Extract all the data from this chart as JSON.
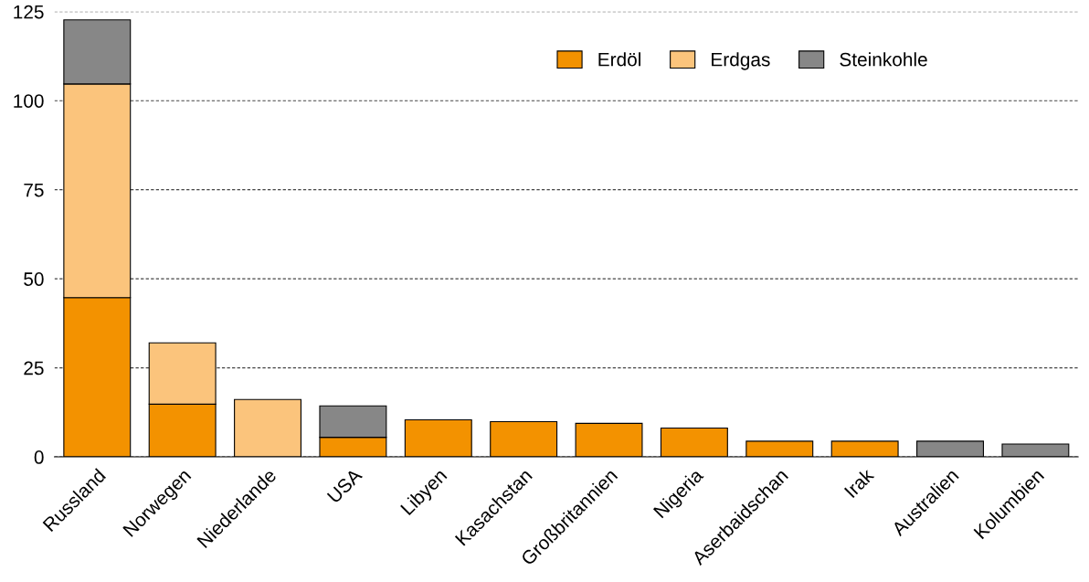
{
  "chart_data": {
    "type": "bar",
    "stacked": true,
    "categories": [
      "Russland",
      "Norwegen",
      "Niederlande",
      "USA",
      "Libyen",
      "Kasachstan",
      "Großbritannien",
      "Nigeria",
      "Aserbaidschan",
      "Irak",
      "Australien",
      "Kolumbien"
    ],
    "series": [
      {
        "name": "Erdöl",
        "color": "#f39200",
        "values": [
          44.7,
          14.8,
          0,
          5.5,
          10.4,
          9.9,
          9.4,
          8.1,
          4.4,
          4.4,
          0,
          0
        ]
      },
      {
        "name": "Erdgas",
        "color": "#fbc47c",
        "values": [
          60,
          17.2,
          16.1,
          0,
          0,
          0,
          0,
          0,
          0,
          0,
          0,
          0
        ]
      },
      {
        "name": "Steinkohle",
        "color": "#878787",
        "values": [
          18,
          0,
          0,
          8.8,
          0,
          0,
          0,
          0,
          0,
          0,
          4.4,
          3.6
        ]
      }
    ],
    "ylim": [
      0,
      125
    ],
    "yticks": [
      0,
      25,
      50,
      75,
      100,
      125
    ],
    "grid": "y",
    "legend": "top right"
  }
}
